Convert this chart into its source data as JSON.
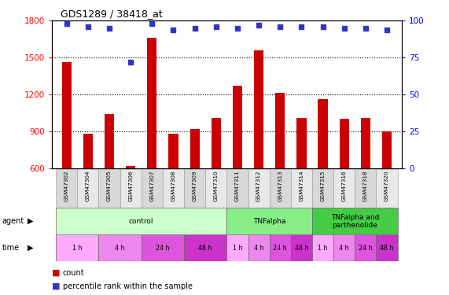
{
  "title": "GDS1289 / 38418_at",
  "samples": [
    "GSM47302",
    "GSM47304",
    "GSM47305",
    "GSM47306",
    "GSM47307",
    "GSM47308",
    "GSM47309",
    "GSM47310",
    "GSM47311",
    "GSM47312",
    "GSM47313",
    "GSM47314",
    "GSM47315",
    "GSM47316",
    "GSM47318",
    "GSM47320"
  ],
  "counts": [
    1460,
    880,
    1040,
    615,
    1660,
    880,
    920,
    1010,
    1270,
    1560,
    1210,
    1010,
    1160,
    1000,
    1010,
    900
  ],
  "percentiles": [
    98,
    96,
    95,
    72,
    98,
    94,
    95,
    96,
    95,
    97,
    96,
    96,
    96,
    95,
    95,
    94
  ],
  "ylim_left": [
    600,
    1800
  ],
  "ylim_right": [
    0,
    100
  ],
  "yticks_left": [
    600,
    900,
    1200,
    1500,
    1800
  ],
  "yticks_right": [
    0,
    25,
    50,
    75,
    100
  ],
  "bar_color": "#cc0000",
  "dot_color": "#3333cc",
  "agent_groups": [
    {
      "label": "control",
      "start": 0,
      "end": 8,
      "color": "#ccffcc"
    },
    {
      "label": "TNFalpha",
      "start": 8,
      "end": 12,
      "color": "#88ee88"
    },
    {
      "label": "TNFalpha and\nparthenolide",
      "start": 12,
      "end": 16,
      "color": "#44cc44"
    }
  ],
  "time_groups": [
    {
      "label": "1 h",
      "start": 0,
      "end": 2,
      "color": "#ffaaff"
    },
    {
      "label": "4 h",
      "start": 2,
      "end": 4,
      "color": "#ee88ee"
    },
    {
      "label": "24 h",
      "start": 4,
      "end": 6,
      "color": "#dd55dd"
    },
    {
      "label": "48 h",
      "start": 6,
      "end": 8,
      "color": "#cc33cc"
    },
    {
      "label": "1 h",
      "start": 8,
      "end": 9,
      "color": "#ffaaff"
    },
    {
      "label": "4 h",
      "start": 9,
      "end": 10,
      "color": "#ee88ee"
    },
    {
      "label": "24 h",
      "start": 10,
      "end": 11,
      "color": "#dd55dd"
    },
    {
      "label": "48 h",
      "start": 11,
      "end": 12,
      "color": "#cc33cc"
    },
    {
      "label": "1 h",
      "start": 12,
      "end": 13,
      "color": "#ffaaff"
    },
    {
      "label": "4 h",
      "start": 13,
      "end": 14,
      "color": "#ee88ee"
    },
    {
      "label": "24 h",
      "start": 14,
      "end": 15,
      "color": "#dd55dd"
    },
    {
      "label": "48 h",
      "start": 15,
      "end": 16,
      "color": "#cc33cc"
    }
  ],
  "grid_lines": [
    900,
    1200,
    1500
  ],
  "bar_width": 0.45,
  "dot_size": 5
}
